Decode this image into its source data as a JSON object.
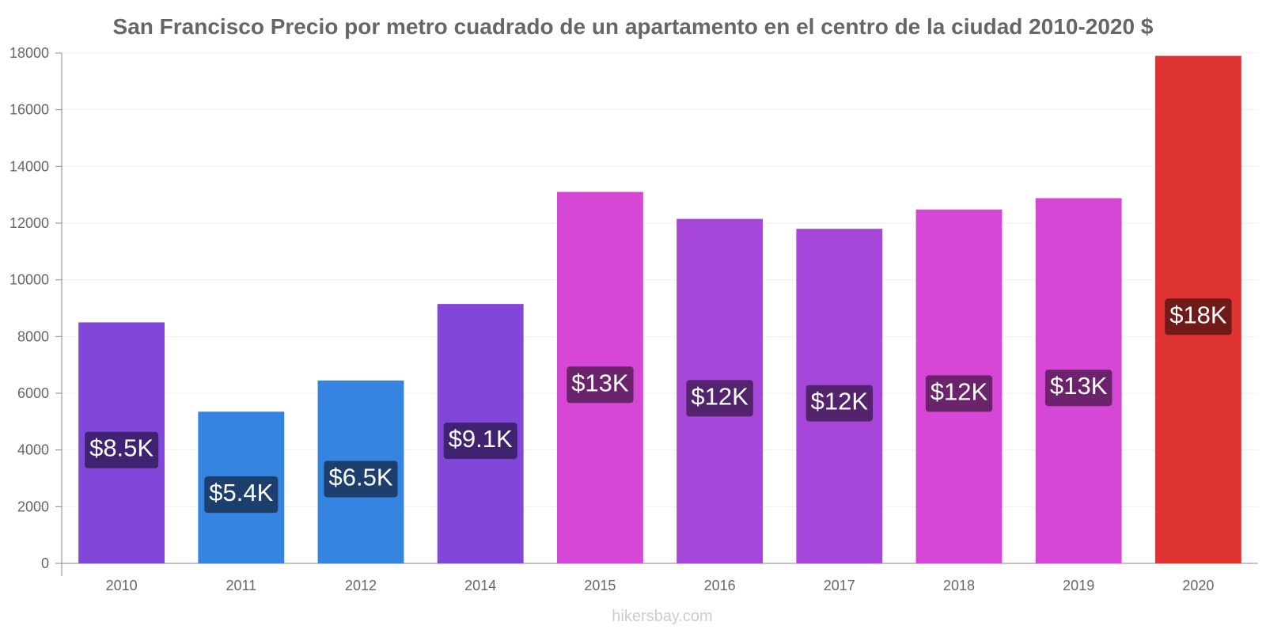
{
  "chart_data": {
    "type": "bar",
    "title": "San Francisco Precio por metro cuadrado de un apartamento en el centro de la ciudad 2010-2020 $",
    "xlabel": "",
    "ylabel": "",
    "ylim": [
      0,
      18000
    ],
    "yticks": [
      0,
      2000,
      4000,
      6000,
      8000,
      10000,
      12000,
      14000,
      16000,
      18000
    ],
    "categories": [
      "2010",
      "2011",
      "2012",
      "2014",
      "2015",
      "2016",
      "2017",
      "2018",
      "2019",
      "2020"
    ],
    "values": [
      8500,
      5350,
      6450,
      9150,
      13100,
      12150,
      11800,
      12480,
      12880,
      17900
    ],
    "labels": [
      "$8.5K",
      "$5.4K",
      "$6.5K",
      "$9.1K",
      "$13K",
      "$12K",
      "$12K",
      "$12K",
      "$13K",
      "$18K"
    ],
    "colors": [
      "#8047d9",
      "#3584e0",
      "#3584e0",
      "#8047d9",
      "#d647d6",
      "#a747d9",
      "#a747d9",
      "#d647d6",
      "#d647d6",
      "#e03434"
    ],
    "label_bg_colors": [
      "#3f2370",
      "#1c3f6e",
      "#1c3f6e",
      "#3f2370",
      "#6b236b",
      "#53236e",
      "#53236e",
      "#6b236b",
      "#6b236b",
      "#701a1a"
    ],
    "grid": true,
    "legend": "none"
  },
  "watermark": "hikersbay.com"
}
